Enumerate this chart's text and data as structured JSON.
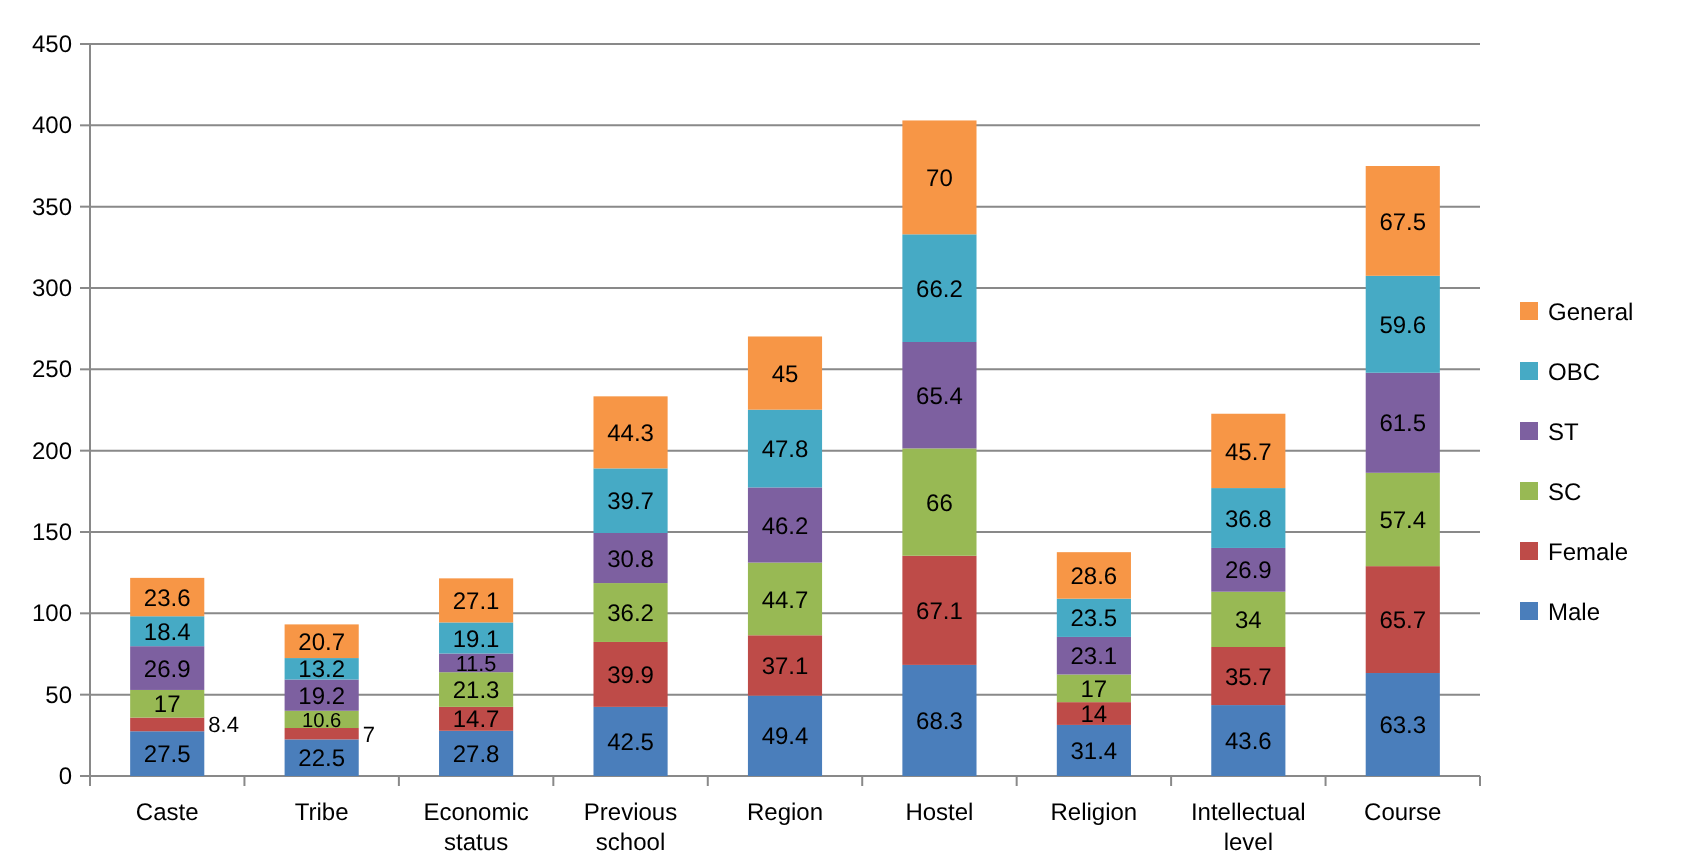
{
  "chart_data": {
    "type": "bar",
    "stacked": true,
    "categories": [
      "Caste",
      "Tribe",
      "Economic status",
      "Previous school",
      "Region",
      "Hostel",
      "Religion",
      "Intellectual level",
      "Course"
    ],
    "series": [
      {
        "name": "Male",
        "color": "#4a7ebb",
        "values": [
          27.5,
          22.5,
          27.8,
          42.5,
          49.4,
          68.3,
          31.4,
          43.6,
          63.3
        ]
      },
      {
        "name": "Female",
        "color": "#be4b48",
        "values": [
          8.4,
          7,
          14.7,
          39.9,
          37.1,
          67.1,
          14,
          35.7,
          65.7
        ]
      },
      {
        "name": "SC",
        "color": "#98b954",
        "values": [
          17,
          10.6,
          21.3,
          36.2,
          44.7,
          66,
          17,
          34,
          57.4
        ]
      },
      {
        "name": "ST",
        "color": "#7d60a0",
        "values": [
          26.9,
          19.2,
          11.5,
          30.8,
          46.2,
          65.4,
          23.1,
          26.9,
          61.5
        ]
      },
      {
        "name": "OBC",
        "color": "#46aac5",
        "values": [
          18.4,
          13.2,
          19.1,
          39.7,
          47.8,
          66.2,
          23.5,
          36.8,
          59.6
        ]
      },
      {
        "name": "General",
        "color": "#f79646",
        "values": [
          23.6,
          20.7,
          27.1,
          44.3,
          45,
          70,
          28.6,
          45.7,
          67.5
        ]
      }
    ],
    "ylim": [
      0,
      450
    ],
    "yticks": [
      0,
      50,
      100,
      150,
      200,
      250,
      300,
      350,
      400,
      450
    ],
    "grid": "y",
    "legend": "right",
    "data_labels": true
  }
}
